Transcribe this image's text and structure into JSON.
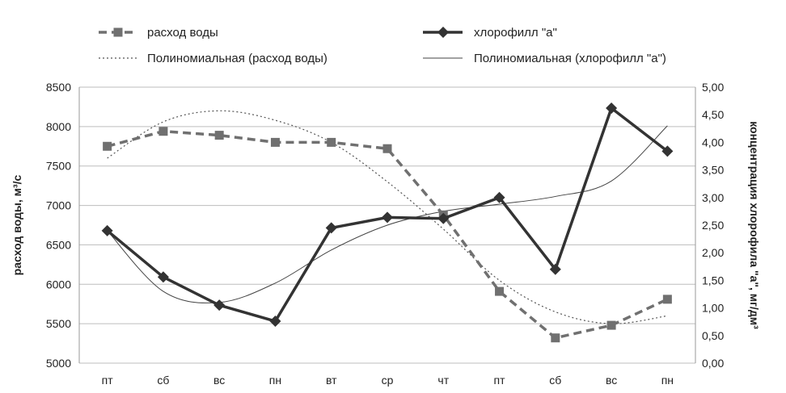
{
  "chart_data": {
    "type": "line",
    "categories": [
      "пт",
      "сб",
      "вс",
      "пн",
      "вт",
      "ср",
      "чт",
      "пт",
      "сб",
      "вс",
      "пн"
    ],
    "y_left": {
      "label": "расход воды, м³/с",
      "ylim": [
        5000,
        8500
      ],
      "ticks": [
        "5000",
        "5500",
        "6000",
        "6500",
        "7000",
        "7500",
        "8000",
        "8500"
      ]
    },
    "y_right": {
      "label": "концентрация хлорофила \"а\", мг/дм³",
      "ylim": [
        0,
        5
      ],
      "ticks": [
        "0,00",
        "0,50",
        "1,00",
        "1,50",
        "2,00",
        "2,50",
        "3,00",
        "3,50",
        "4,00",
        "4,50",
        "5,00"
      ]
    },
    "series": [
      {
        "name": "расход воды",
        "axis": "left",
        "style": "dashed-square",
        "color": "#707070",
        "values": [
          7750,
          7940,
          7890,
          7800,
          7800,
          7720,
          6880,
          5910,
          5320,
          5480,
          5810
        ]
      },
      {
        "name": "хлорофилл  \"а\"",
        "axis": "right",
        "style": "solid-diamond",
        "color": "#333333",
        "values": [
          2.4,
          1.56,
          1.05,
          0.76,
          2.45,
          2.64,
          2.62,
          3.0,
          1.7,
          4.62,
          3.84
        ]
      },
      {
        "name": "Полиномиальная (расход воды)",
        "axis": "left",
        "style": "dotted-trend",
        "color": "#555555",
        "values": [
          7600,
          8060,
          8200,
          8080,
          7800,
          7300,
          6700,
          6050,
          5650,
          5500,
          5600
        ]
      },
      {
        "name": "Полиномиальная (хлорофилл  \"а\")",
        "axis": "right",
        "style": "thin-trend",
        "color": "#444444",
        "values": [
          2.4,
          1.3,
          1.1,
          1.45,
          2.05,
          2.5,
          2.75,
          2.88,
          3.02,
          3.3,
          4.3
        ]
      }
    ],
    "legend_position": "top",
    "grid": true
  }
}
